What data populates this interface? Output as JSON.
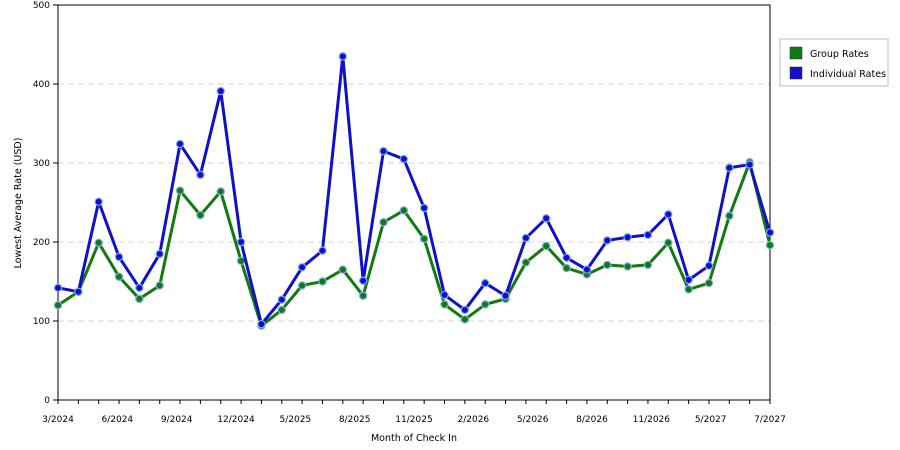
{
  "chart_data": {
    "type": "line",
    "xlabel": "Month of Check In",
    "ylabel": "Lowest Average Rate (USD)",
    "ylim": [
      0,
      500
    ],
    "yticks": [
      0,
      100,
      200,
      300,
      400,
      500
    ],
    "grid": true,
    "legend_position": "right",
    "xtick_labels": [
      "3/2024",
      "6/2024",
      "9/2024",
      "12/2024",
      "5/2025",
      "8/2025",
      "11/2025",
      "2/2026",
      "5/2026",
      "8/2026",
      "11/2026",
      "5/2027",
      "7/2027"
    ],
    "series": [
      {
        "name": "Group Rates",
        "color": "#117a11",
        "values": [
          120,
          137,
          199,
          156,
          128,
          145,
          265,
          234,
          264,
          176,
          94,
          114,
          145,
          150,
          165,
          132,
          225,
          240,
          204,
          121,
          102,
          121,
          128,
          174,
          195,
          167,
          159,
          171,
          169,
          171,
          199,
          140,
          148,
          233,
          301,
          196
        ]
      },
      {
        "name": "Individual Rates",
        "color": "#1010cc",
        "values": [
          142,
          137,
          251,
          181,
          142,
          185,
          324,
          285,
          391,
          200,
          96,
          127,
          168,
          189,
          435,
          151,
          315,
          305,
          243,
          133,
          114,
          148,
          132,
          205,
          230,
          180,
          165,
          202,
          206,
          209,
          235,
          152,
          170,
          294,
          298,
          212
        ]
      }
    ]
  }
}
